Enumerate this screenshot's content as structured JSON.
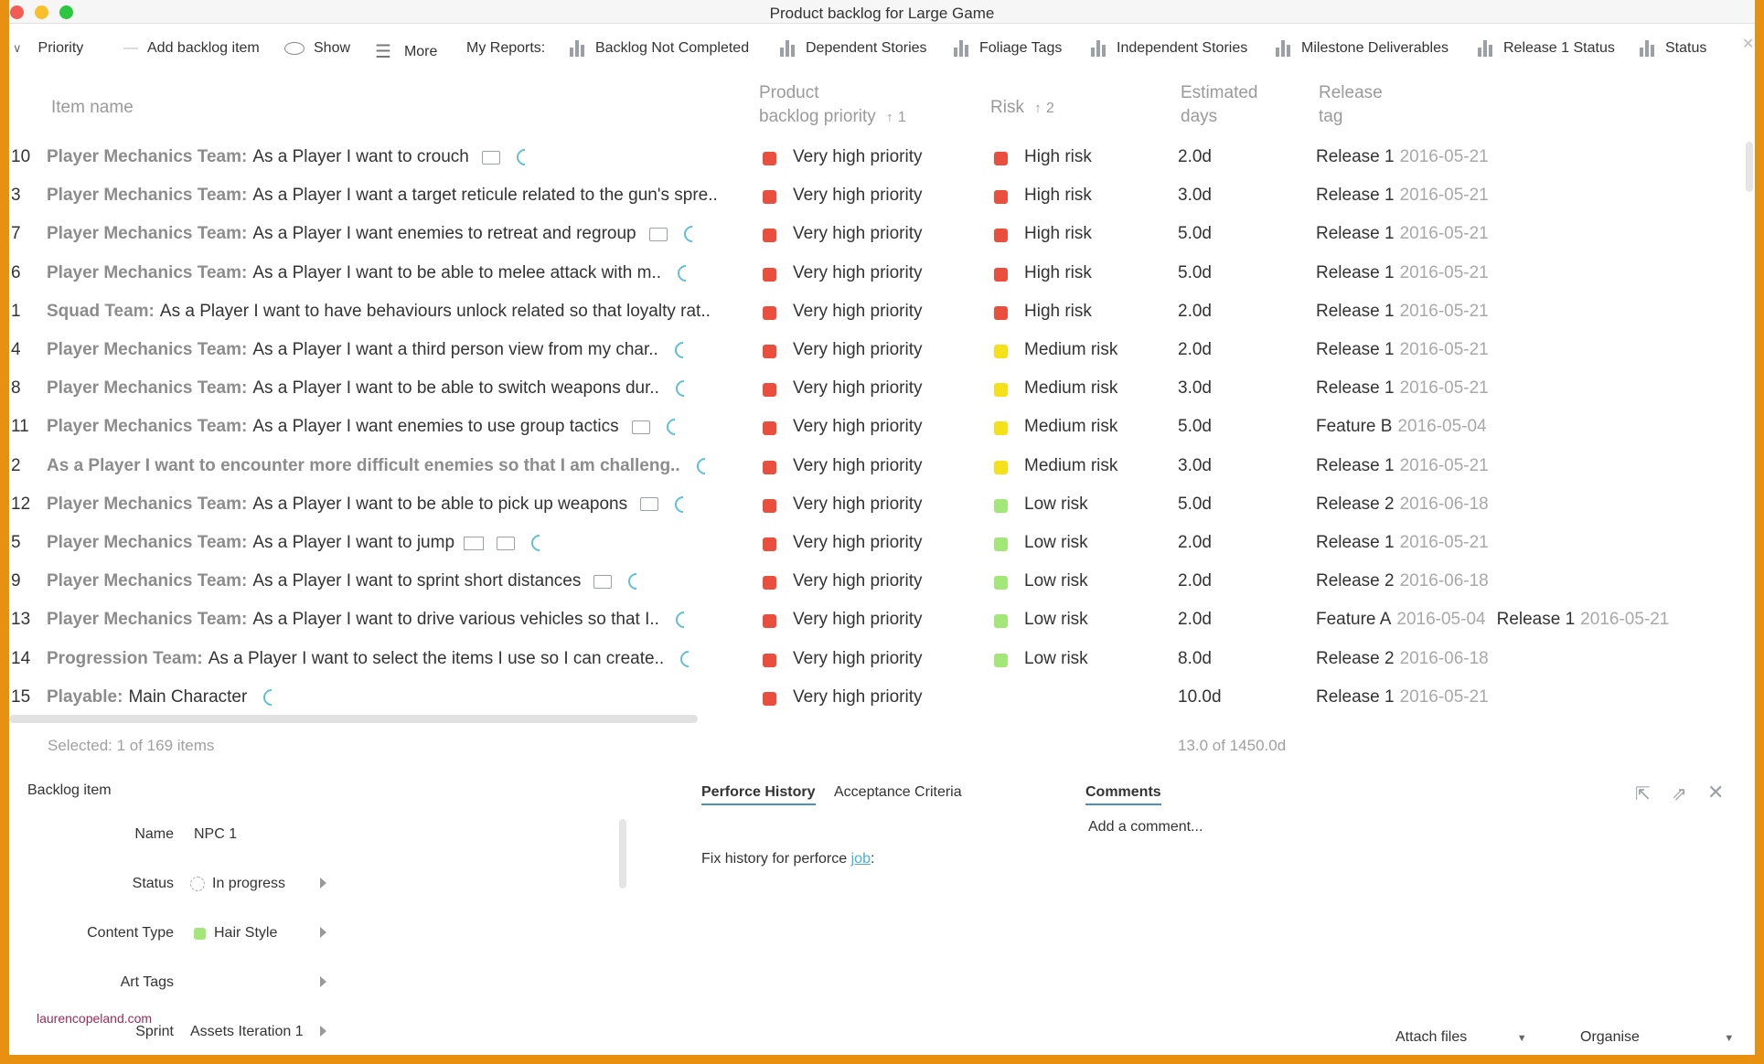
{
  "window": {
    "title": "Product backlog for Large Game"
  },
  "toolbar": {
    "priority": "Priority",
    "add_item": "Add backlog item",
    "show": "Show",
    "more": "More",
    "my_reports": "My Reports:",
    "reports": [
      "Backlog Not Completed",
      "Dependent Stories",
      "Foliage Tags",
      "Independent Stories",
      "Milestone Deliverables",
      "Release 1 Status",
      "Status"
    ]
  },
  "columns": {
    "item_name": "Item name",
    "priority_l1": "Product",
    "priority_l2": "backlog priority",
    "priority_sort": "1",
    "risk": "Risk",
    "risk_sort": "2",
    "est_l1": "Estimated",
    "est_l2": "days",
    "rel_l1": "Release",
    "rel_l2": "tag"
  },
  "rows": [
    {
      "id": "10",
      "team": "Player Mechanics Team:",
      "text": "As a Player I want to crouch",
      "priority": "Very high priority",
      "risk": "High risk",
      "est": "2.0d",
      "release": "Release 1",
      "date": "2016-05-21",
      "release2": "",
      "date2": ""
    },
    {
      "id": "3",
      "team": "Player Mechanics Team:",
      "text": "As a Player I want a target reticule related to the gun's spre..",
      "priority": "Very high priority",
      "risk": "High risk",
      "est": "3.0d",
      "release": "Release 1",
      "date": "2016-05-21",
      "release2": "",
      "date2": ""
    },
    {
      "id": "7",
      "team": "Player Mechanics Team:",
      "text": "As a Player I want enemies to retreat and regroup",
      "priority": "Very high priority",
      "risk": "High risk",
      "est": "5.0d",
      "release": "Release 1",
      "date": "2016-05-21",
      "release2": "",
      "date2": ""
    },
    {
      "id": "6",
      "team": "Player Mechanics Team:",
      "text": "As a Player I want to be able to melee attack with m..",
      "priority": "Very high priority",
      "risk": "High risk",
      "est": "5.0d",
      "release": "Release 1",
      "date": "2016-05-21",
      "release2": "",
      "date2": ""
    },
    {
      "id": "1",
      "team": "Squad Team:",
      "text": "As a Player I want to have behaviours unlock related so that loyalty rat..",
      "priority": "Very high priority",
      "risk": "High risk",
      "est": "2.0d",
      "release": "Release 1",
      "date": "2016-05-21",
      "release2": "",
      "date2": ""
    },
    {
      "id": "4",
      "team": "Player Mechanics Team:",
      "text": "As a Player I want a third person view from my char..",
      "priority": "Very high priority",
      "risk": "Medium risk",
      "est": "2.0d",
      "release": "Release 1",
      "date": "2016-05-21",
      "release2": "",
      "date2": ""
    },
    {
      "id": "8",
      "team": "Player Mechanics Team:",
      "text": "As a Player I want to be able to switch weapons dur..",
      "priority": "Very high priority",
      "risk": "Medium risk",
      "est": "3.0d",
      "release": "Release 1",
      "date": "2016-05-21",
      "release2": "",
      "date2": ""
    },
    {
      "id": "11",
      "team": "Player Mechanics Team:",
      "text": "As a Player I want enemies to use group tactics",
      "priority": "Very high priority",
      "risk": "Medium risk",
      "est": "5.0d",
      "release": "Feature B",
      "date": "2016-05-04",
      "release2": "",
      "date2": ""
    },
    {
      "id": "2",
      "team": "",
      "text": "As a Player I want to encounter more difficult enemies so that I am challeng..",
      "priority": "Very high priority",
      "risk": "Medium risk",
      "est": "3.0d",
      "release": "Release 1",
      "date": "2016-05-21",
      "release2": "",
      "date2": ""
    },
    {
      "id": "12",
      "team": "Player Mechanics Team:",
      "text": "As a Player I want to be able to pick up weapons",
      "priority": "Very high priority",
      "risk": "Low risk",
      "est": "5.0d",
      "release": "Release 2",
      "date": "2016-06-18",
      "release2": "",
      "date2": ""
    },
    {
      "id": "5",
      "team": "Player Mechanics Team:",
      "text": "As a Player I want to jump",
      "priority": "Very high priority",
      "risk": "Low risk",
      "est": "2.0d",
      "release": "Release 1",
      "date": "2016-05-21",
      "release2": "",
      "date2": ""
    },
    {
      "id": "9",
      "team": "Player Mechanics Team:",
      "text": "As a Player I want to sprint short distances",
      "priority": "Very high priority",
      "risk": "Low risk",
      "est": "2.0d",
      "release": "Release 2",
      "date": "2016-06-18",
      "release2": "",
      "date2": ""
    },
    {
      "id": "13",
      "team": "Player Mechanics Team:",
      "text": "As a Player I want to drive various vehicles so that I..",
      "priority": "Very high priority",
      "risk": "Low risk",
      "est": "2.0d",
      "release": "Feature A",
      "date": "2016-05-04",
      "release2": "Release 1",
      "date2": "2016-05-21"
    },
    {
      "id": "14",
      "team": "Progression Team:",
      "text": "As a Player I want to select the items I use so I can create..",
      "priority": "Very high priority",
      "risk": "Low risk",
      "est": "8.0d",
      "release": "Release 2",
      "date": "2016-06-18",
      "release2": "",
      "date2": ""
    },
    {
      "id": "15",
      "team": "Playable:",
      "text": "Main Character",
      "priority": "Very high priority",
      "risk": "",
      "est": "10.0d",
      "release": "Release 1",
      "date": "2016-05-21",
      "release2": "",
      "date2": ""
    }
  ],
  "footer": {
    "selected": "Selected: 1 of 169 items",
    "total": "13.0 of 1450.0d"
  },
  "detail": {
    "title": "Backlog item",
    "name_label": "Name",
    "name_value": "NPC 1",
    "status_label": "Status",
    "status_value": "In progress",
    "content_label": "Content Type",
    "content_value": "Hair Style",
    "art_label": "Art Tags",
    "sprint_label": "Sprint",
    "sprint_value": "Assets Iteration 1",
    "tabs": [
      "Perforce History",
      "Acceptance Criteria"
    ],
    "perforce_text": "Fix history for perforce",
    "perforce_link": "job",
    "perforce_suffix": ":",
    "comments_tab": "Comments",
    "add_comment": "Add a comment...",
    "attach": "Attach files",
    "organise": "Organise"
  },
  "watermark": "laurencopeland.com",
  "colors": {
    "high": "#ea4e3d",
    "medium": "#f5e11a",
    "low": "#a2e778",
    "frame": "#e8900f",
    "link": "#4ab0d0"
  }
}
